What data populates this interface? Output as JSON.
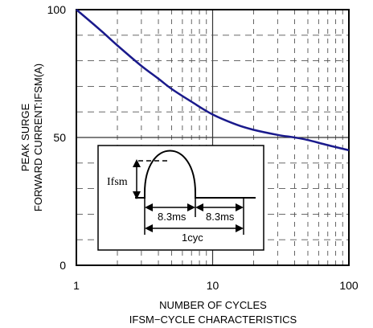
{
  "chart_data": {
    "type": "line",
    "x_scale": "log",
    "xlim": [
      1,
      100
    ],
    "ylim": [
      0,
      100
    ],
    "x_ticks": [
      "1",
      "10",
      "100"
    ],
    "y_ticks": [
      "0",
      "50",
      "100"
    ],
    "grid": true,
    "xlabel": "NUMBER OF CYCLES",
    "ylabel_line1": "PEAK SURGE",
    "ylabel_line2": "FORWARD CURRENT:IFSM(A)",
    "caption": "IFSM−CYCLE CHARACTERISTICS",
    "line_color": "#1a1a8c",
    "series": [
      {
        "x": [
          1,
          1.5,
          2,
          3,
          4,
          5,
          7,
          10,
          15,
          20,
          30,
          40,
          50,
          70,
          100
        ],
        "y": [
          100,
          92,
          86,
          78,
          73,
          69,
          64,
          59,
          55,
          53,
          51,
          50,
          49,
          47,
          45
        ]
      }
    ],
    "inset": {
      "ifsm_label": "Ifsm",
      "half_period_1": "8.3ms",
      "half_period_2": "8.3ms",
      "cycle_label": "1cyc"
    }
  }
}
